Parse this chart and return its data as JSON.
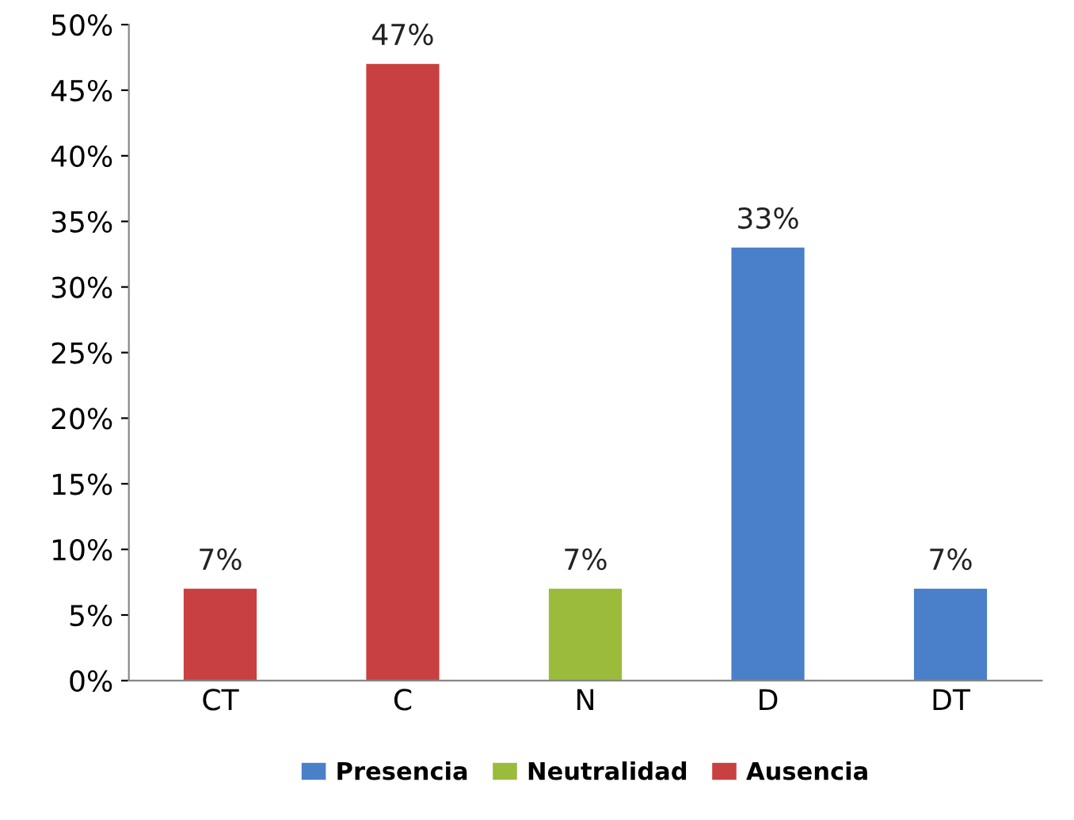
{
  "chart_data": {
    "type": "bar",
    "stacked": true,
    "categories": [
      "CT",
      "C",
      "N",
      "D",
      "DT"
    ],
    "series": [
      {
        "name": "Presencia",
        "color": "#4a7fc9",
        "values": [
          null,
          null,
          null,
          33,
          7
        ],
        "value_labels": [
          null,
          null,
          null,
          "33%",
          "7%"
        ]
      },
      {
        "name": "Neutralidad",
        "color": "#9bbb3b",
        "values": [
          null,
          null,
          7,
          null,
          null
        ],
        "value_labels": [
          null,
          null,
          "7%",
          null,
          null
        ]
      },
      {
        "name": "Ausencia",
        "color": "#c94040",
        "values": [
          7,
          47,
          null,
          null,
          null
        ],
        "value_labels": [
          "7%",
          "47%",
          null,
          null,
          null
        ]
      }
    ],
    "ylim": [
      0,
      50
    ],
    "yticks": [
      {
        "value": 0,
        "label": "0%"
      },
      {
        "value": 5,
        "label": "5%"
      },
      {
        "value": 10,
        "label": "10%"
      },
      {
        "value": 15,
        "label": "15%"
      },
      {
        "value": 20,
        "label": "20%"
      },
      {
        "value": 25,
        "label": "25%"
      },
      {
        "value": 30,
        "label": "30%"
      },
      {
        "value": 35,
        "label": "35%"
      },
      {
        "value": 40,
        "label": "40%"
      },
      {
        "value": 45,
        "label": "45%"
      },
      {
        "value": 50,
        "label": "50%"
      }
    ],
    "grid": false,
    "legend": "bottom"
  }
}
